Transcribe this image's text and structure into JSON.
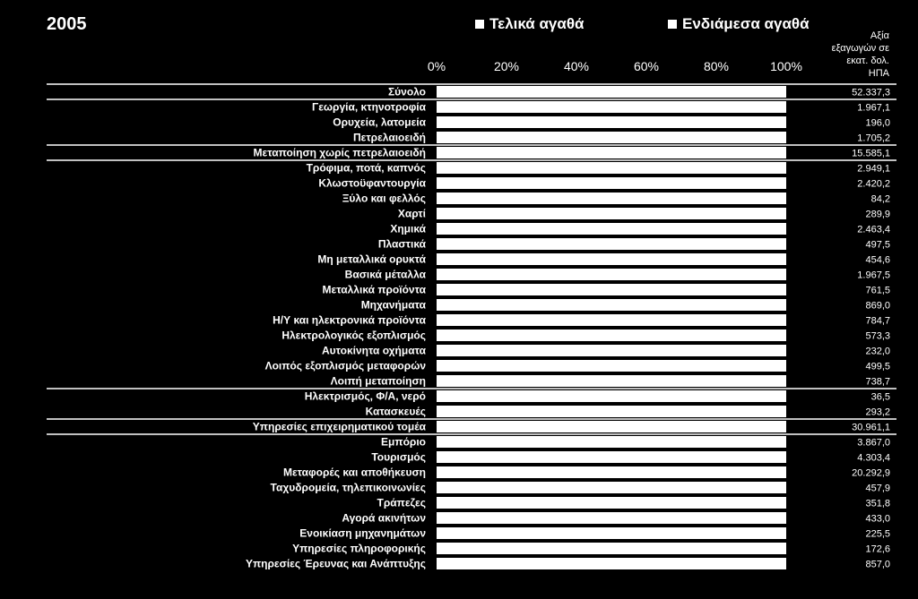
{
  "chart_data": {
    "type": "bar",
    "title": "2005",
    "legend": [
      "Τελικά αγαθά",
      "Ενδιάμεσα αγαθά"
    ],
    "value_header": "Αξία\nεξαγωγών σε\nεκατ. δολ.\nΗΠΑ",
    "x_ticks": [
      "0%",
      "20%",
      "40%",
      "60%",
      "80%",
      "100%"
    ],
    "xlim": [
      0,
      100
    ],
    "categories": [
      "Σύνολο",
      "Γεωργία, κτηνοτροφία",
      "Ορυχεία, λατομεία",
      "Πετρελαιοειδή",
      "Μεταποίηση χωρίς πετρελαιοειδή",
      "Τρόφιμα, ποτά, καπνός",
      "Κλωστοϋφαντουργία",
      "Ξύλο και φελλός",
      "Χαρτί",
      "Χημικά",
      "Πλαστικά",
      "Μη μεταλλικά ορυκτά",
      "Βασικά μέταλλα",
      "Μεταλλικά προϊόντα",
      "Μηχανήματα",
      "Η/Υ και ηλεκτρονικά προϊόντα",
      "Ηλεκτρολογικός εξοπλισμός",
      "Αυτοκίνητα οχήματα",
      "Λοιπός εξοπλισμός μεταφορών",
      "Λοιπή μεταποίηση",
      "Ηλεκτρισμός, Φ/Α, νερό",
      "Κατασκευές",
      "Υπηρεσίες επιχειρηματικού τομέα",
      "Εμπόριο",
      "Τουρισμός",
      "Μεταφορές και αποθήκευση",
      "Ταχυδρομεία, τηλεπικοινωνίες",
      "Τράπεζες",
      "Αγορά ακινήτων",
      "Ενοικίαση μηχανημάτων",
      "Υπηρεσίες πληροφορικής",
      "Υπηρεσίες Έρευνας και Ανάπτυξης"
    ],
    "export_values": [
      "52.337,3",
      "1.967,1",
      "196,0",
      "1.705,2",
      "15.585,1",
      "2.949,1",
      "2.420,2",
      "84,2",
      "289,9",
      "2.463,4",
      "497,5",
      "454,6",
      "1.967,5",
      "761,5",
      "869,0",
      "784,7",
      "573,3",
      "232,0",
      "499,5",
      "738,7",
      "36,5",
      "293,2",
      "30.961,1",
      "3.867,0",
      "4.303,4",
      "20.292,9",
      "457,9",
      "351,8",
      "433,0",
      "225,5",
      "172,6",
      "857,0"
    ],
    "series": [
      {
        "name": "Τελικά αγαθά",
        "values": [
          100,
          100,
          100,
          100,
          100,
          100,
          100,
          100,
          100,
          100,
          100,
          100,
          100,
          100,
          100,
          100,
          100,
          100,
          100,
          100,
          100,
          100,
          100,
          100,
          100,
          100,
          100,
          100,
          100,
          100,
          100,
          100
        ]
      },
      {
        "name": "Ενδιάμεσα αγαθά",
        "values": [
          0,
          0,
          0,
          0,
          0,
          0,
          0,
          0,
          0,
          0,
          0,
          0,
          0,
          0,
          0,
          0,
          0,
          0,
          0,
          0,
          0,
          0,
          0,
          0,
          0,
          0,
          0,
          0,
          0,
          0,
          0,
          0
        ]
      }
    ],
    "group_separators_before": [
      0,
      1,
      4,
      5,
      20,
      22,
      23
    ],
    "colors": {
      "background": "#000000",
      "bar": "#ffffff",
      "text": "#ffffff"
    }
  }
}
